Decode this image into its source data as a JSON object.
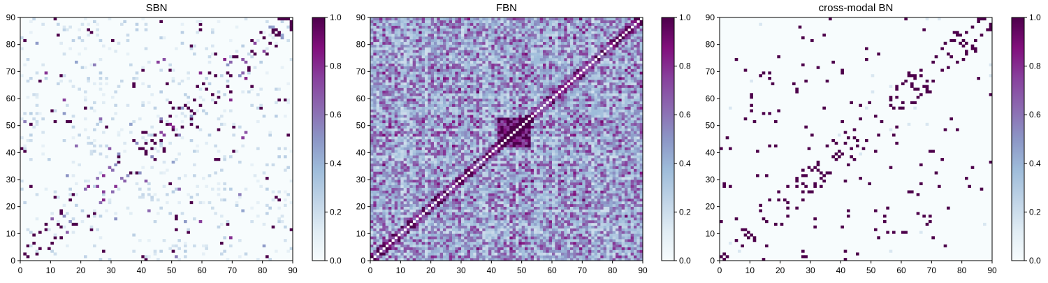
{
  "figure": {
    "colormap": [
      "#f7fcfd",
      "#e0ecf4",
      "#bfd3e6",
      "#9ebcda",
      "#8c96c6",
      "#8c6bb1",
      "#88419d",
      "#810f7c",
      "#4d004b"
    ]
  },
  "chart_data": [
    {
      "type": "heatmap",
      "title": "SBN",
      "xlabel": "",
      "ylabel": "",
      "xlim": [
        0,
        90
      ],
      "ylim": [
        0,
        90
      ],
      "xticks": [
        "0",
        "10",
        "20",
        "30",
        "40",
        "50",
        "60",
        "70",
        "80",
        "90"
      ],
      "yticks": [
        "0",
        "10",
        "20",
        "30",
        "40",
        "50",
        "60",
        "70",
        "80",
        "90"
      ],
      "grid_size": 90,
      "value_range": [
        0,
        1
      ],
      "pattern": "sparse",
      "colorbar": {
        "ticks": [
          "0.0",
          "0.2",
          "0.4",
          "0.6",
          "0.8",
          "1.0"
        ],
        "range": [
          0,
          1
        ]
      }
    },
    {
      "type": "heatmap",
      "title": "FBN",
      "xlabel": "",
      "ylabel": "",
      "xlim": [
        0,
        90
      ],
      "ylim": [
        0,
        90
      ],
      "xticks": [
        "0",
        "10",
        "20",
        "30",
        "40",
        "50",
        "60",
        "70",
        "80",
        "90"
      ],
      "yticks": [
        "0",
        "10",
        "20",
        "30",
        "40",
        "50",
        "60",
        "70",
        "80",
        "90"
      ],
      "grid_size": 90,
      "value_range": [
        0,
        1
      ],
      "pattern": "dense",
      "colorbar": {
        "ticks": [
          "0.0",
          "0.2",
          "0.4",
          "0.6",
          "0.8",
          "1.0"
        ],
        "range": [
          0,
          1
        ]
      }
    },
    {
      "type": "heatmap",
      "title": "cross-modal BN",
      "xlabel": "",
      "ylabel": "",
      "xlim": [
        0,
        90
      ],
      "ylim": [
        0,
        90
      ],
      "xticks": [
        "0",
        "10",
        "20",
        "30",
        "40",
        "50",
        "60",
        "70",
        "80",
        "90"
      ],
      "yticks": [
        "0",
        "10",
        "20",
        "30",
        "40",
        "50",
        "60",
        "70",
        "80",
        "90"
      ],
      "grid_size": 90,
      "value_range": [
        0,
        1
      ],
      "pattern": "binary",
      "colorbar": {
        "ticks": [
          "0.0",
          "0.2",
          "0.4",
          "0.6",
          "0.8",
          "1.0"
        ],
        "range": [
          0,
          1
        ]
      }
    }
  ]
}
